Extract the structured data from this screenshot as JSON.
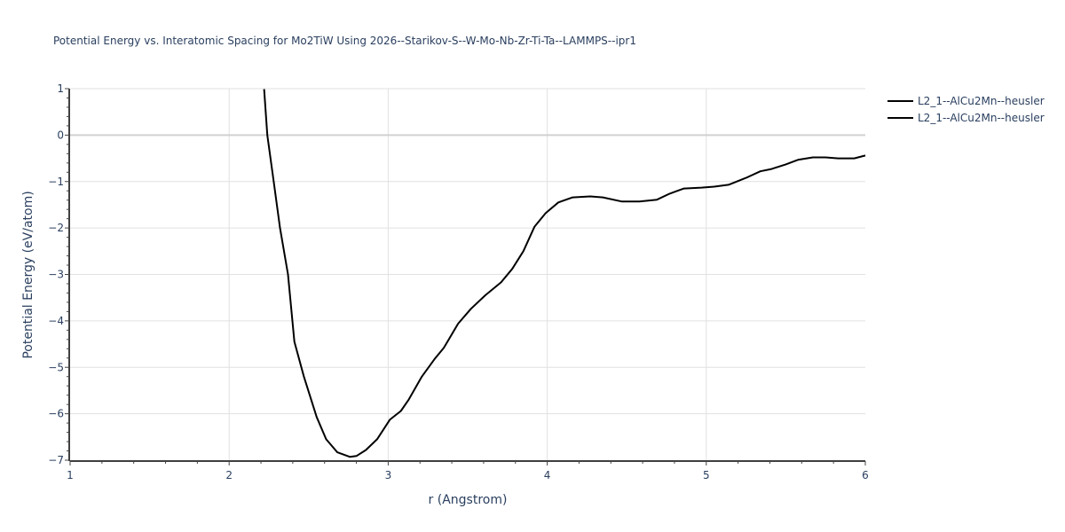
{
  "chart_data": {
    "type": "line",
    "title": "Potential Energy vs. Interatomic Spacing for Mo2TiW Using 2026--Starikov-S--W-Mo-Nb-Zr-Ti-Ta--LAMMPS--ipr1",
    "xlabel": "r (Angstrom)",
    "ylabel": "Potential Energy (eV/atom)",
    "xlim": [
      1,
      6
    ],
    "ylim": [
      -7,
      1
    ],
    "x_ticks": [
      "1",
      "2",
      "3",
      "4",
      "5",
      "6"
    ],
    "y_ticks": [
      "1",
      "0",
      "−1",
      "−2",
      "−3",
      "−4",
      "−5",
      "−6",
      "−7"
    ],
    "grid": true,
    "legend_position": "top-right outside",
    "series": [
      {
        "name": "L2_1--AlCu2Mn--heusler",
        "color": "#000000",
        "x": [
          2.22,
          2.24,
          2.28,
          2.32,
          2.37,
          2.41,
          2.47,
          2.55,
          2.61,
          2.68,
          2.76,
          2.8,
          2.86,
          2.93,
          3.01,
          3.08,
          3.13,
          3.21,
          3.29,
          3.35,
          3.44,
          3.52,
          3.61,
          3.71,
          3.78,
          3.85,
          3.92,
          3.99,
          4.07,
          4.16,
          4.27,
          4.35,
          4.47,
          4.58,
          4.69,
          4.77,
          4.86,
          4.97,
          5.05,
          5.14,
          5.25,
          5.34,
          5.41,
          5.5,
          5.58,
          5.67,
          5.75,
          5.83,
          5.93,
          6.0
        ],
        "y": [
          0.99,
          0.0,
          -1.0,
          -2.0,
          -3.0,
          -4.45,
          -5.2,
          -6.07,
          -6.55,
          -6.83,
          -6.93,
          -6.91,
          -6.78,
          -6.55,
          -6.13,
          -5.94,
          -5.69,
          -5.21,
          -4.83,
          -4.58,
          -4.06,
          -3.74,
          -3.45,
          -3.17,
          -2.88,
          -2.5,
          -1.97,
          -1.68,
          -1.45,
          -1.34,
          -1.32,
          -1.34,
          -1.43,
          -1.43,
          -1.39,
          -1.26,
          -1.15,
          -1.13,
          -1.11,
          -1.07,
          -0.92,
          -0.78,
          -0.73,
          -0.63,
          -0.53,
          -0.48,
          -0.48,
          -0.5,
          -0.5,
          -0.44
        ]
      },
      {
        "name": "L2_1--AlCu2Mn--heusler",
        "color": "#000000",
        "x": [],
        "y": []
      }
    ]
  },
  "legend": {
    "items": [
      {
        "label": "L2_1--AlCu2Mn--heusler"
      },
      {
        "label": "L2_1--AlCu2Mn--heusler"
      }
    ]
  }
}
